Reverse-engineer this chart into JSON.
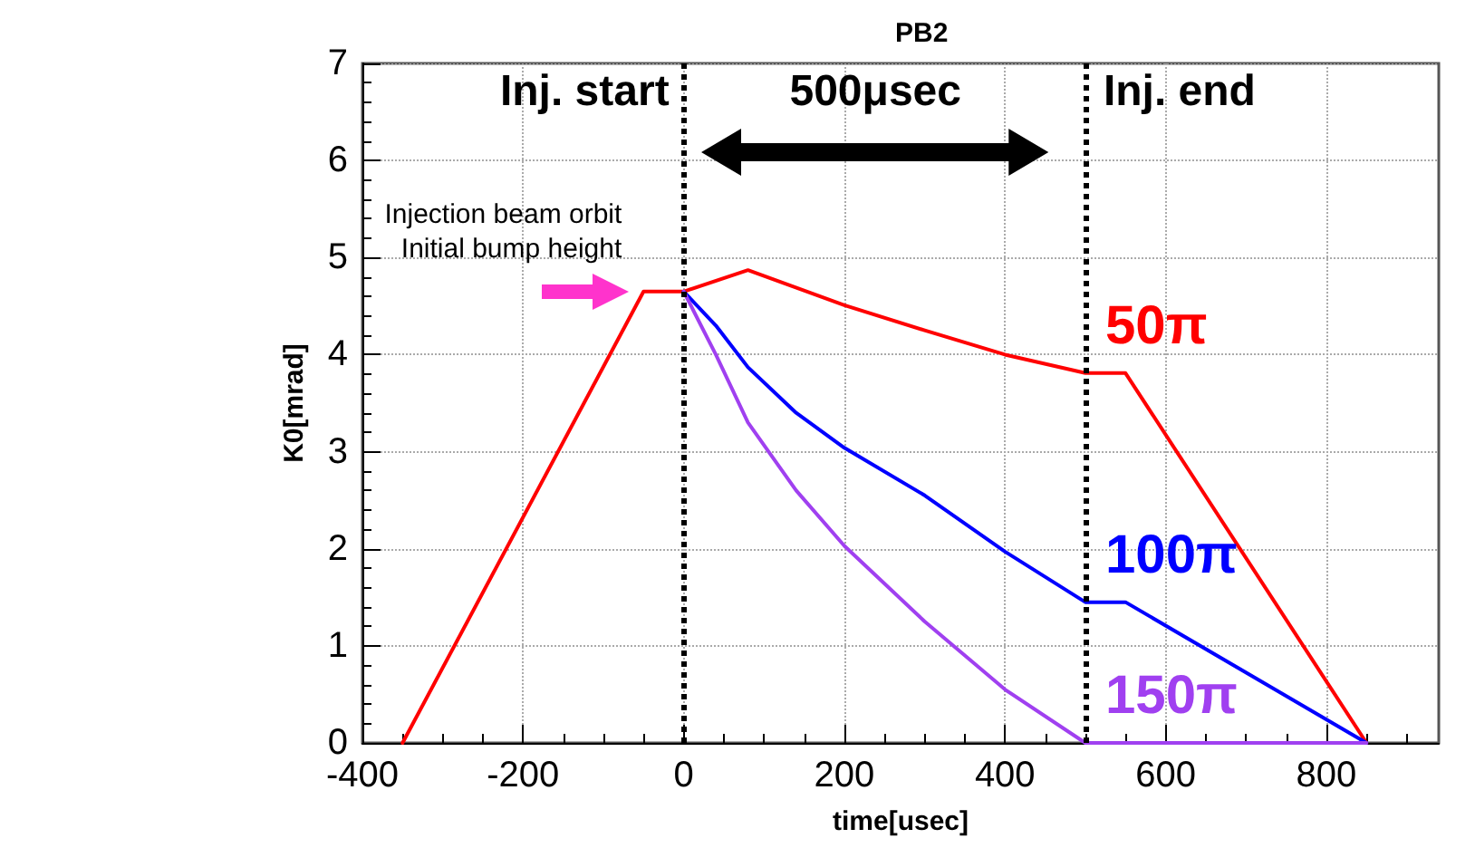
{
  "chart_data": {
    "type": "line",
    "title": "PB2",
    "xlabel": "time[usec]",
    "ylabel": "K0[mrad]",
    "xlim": [
      -400,
      940
    ],
    "xticks": [
      -400,
      -200,
      0,
      200,
      400,
      600,
      800
    ],
    "ylim": [
      0,
      7
    ],
    "yticks": [
      0,
      1,
      2,
      3,
      4,
      5,
      6,
      7
    ],
    "grid": true,
    "legend": false,
    "marker": "none",
    "line_style": "solid",
    "series": [
      {
        "name": "50π",
        "color": "#ff0000",
        "x": [
          -350,
          -50,
          0,
          80,
          200,
          300,
          400,
          500,
          550,
          850
        ],
        "values": [
          0,
          4.65,
          4.65,
          4.87,
          4.51,
          4.25,
          4.0,
          3.81,
          3.81,
          0
        ]
      },
      {
        "name": "100π",
        "color": "#0000ff",
        "x": [
          0,
          40,
          80,
          140,
          200,
          300,
          400,
          500,
          550,
          850
        ],
        "values": [
          4.65,
          4.3,
          3.87,
          3.4,
          3.04,
          2.55,
          1.97,
          1.45,
          1.45,
          0
        ]
      },
      {
        "name": "150π",
        "color": "#a040f0",
        "x": [
          0,
          40,
          80,
          140,
          200,
          300,
          400,
          500,
          850
        ],
        "values": [
          4.65,
          4.0,
          3.3,
          2.6,
          2.03,
          1.25,
          0.55,
          0,
          0
        ]
      }
    ],
    "ref_lines": [
      {
        "axis": "x",
        "value": 0,
        "label": "Inj. start",
        "color": "#000000",
        "line_style": "dotted"
      },
      {
        "axis": "x",
        "value": 500,
        "label": "Inj. end",
        "color": "#000000",
        "line_style": "dotted"
      }
    ],
    "annotations": [
      {
        "text": "Injection beam orbit\nInitial bump height",
        "x": -50,
        "y": 4.65
      },
      "500μsec"
    ]
  }
}
